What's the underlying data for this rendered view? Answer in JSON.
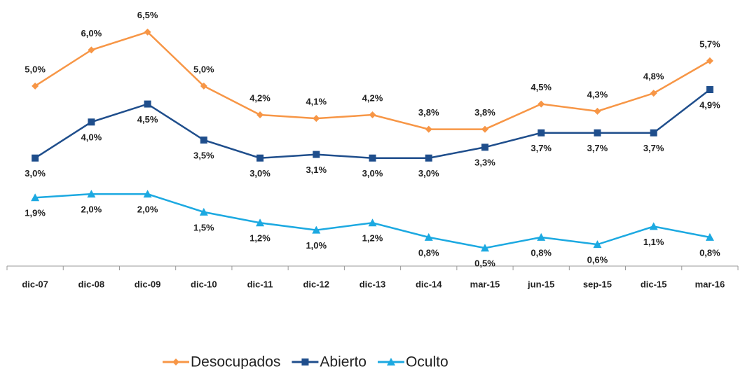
{
  "chart_data": {
    "type": "line",
    "categories": [
      "dic-07",
      "dic-08",
      "dic-09",
      "dic-10",
      "dic-11",
      "dic-12",
      "dic-13",
      "dic-14",
      "mar-15",
      "jun-15",
      "sep-15",
      "dic-15",
      "mar-16"
    ],
    "ylim": [
      0,
      7
    ],
    "legend": "bottom",
    "series": [
      {
        "name": "Desocupados",
        "color": "#f79646",
        "marker": "diamond",
        "label_side": "above",
        "values": [
          5.0,
          6.0,
          6.5,
          5.0,
          4.2,
          4.1,
          4.2,
          3.8,
          3.8,
          4.5,
          4.3,
          4.8,
          5.7
        ],
        "value_labels": [
          "5,0%",
          "6,0%",
          "6,5%",
          "5,0%",
          "4,2%",
          "4,1%",
          "4,2%",
          "3,8%",
          "3,8%",
          "4,5%",
          "4,3%",
          "4,8%",
          "5,7%"
        ]
      },
      {
        "name": "Abierto",
        "color": "#1f4e8c",
        "marker": "square",
        "label_side": "below",
        "values": [
          3.0,
          4.0,
          4.5,
          3.5,
          3.0,
          3.1,
          3.0,
          3.0,
          3.3,
          3.7,
          3.7,
          3.7,
          4.9
        ],
        "value_labels": [
          "3,0%",
          "4,0%",
          "4,5%",
          "3,5%",
          "3,0%",
          "3,1%",
          "3,0%",
          "3,0%",
          "3,3%",
          "3,7%",
          "3,7%",
          "3,7%",
          "4,9%"
        ]
      },
      {
        "name": "Oculto",
        "color": "#1ca9e1",
        "marker": "triangle",
        "label_side": "below",
        "values": [
          1.9,
          2.0,
          2.0,
          1.5,
          1.2,
          1.0,
          1.2,
          0.8,
          0.5,
          0.8,
          0.6,
          1.1,
          0.8
        ],
        "value_labels": [
          "1,9%",
          "2,0%",
          "2,0%",
          "1,5%",
          "1,2%",
          "1,0%",
          "1,2%",
          "0,8%",
          "0,5%",
          "0,8%",
          "0,6%",
          "1,1%",
          "0,8%"
        ]
      }
    ]
  }
}
